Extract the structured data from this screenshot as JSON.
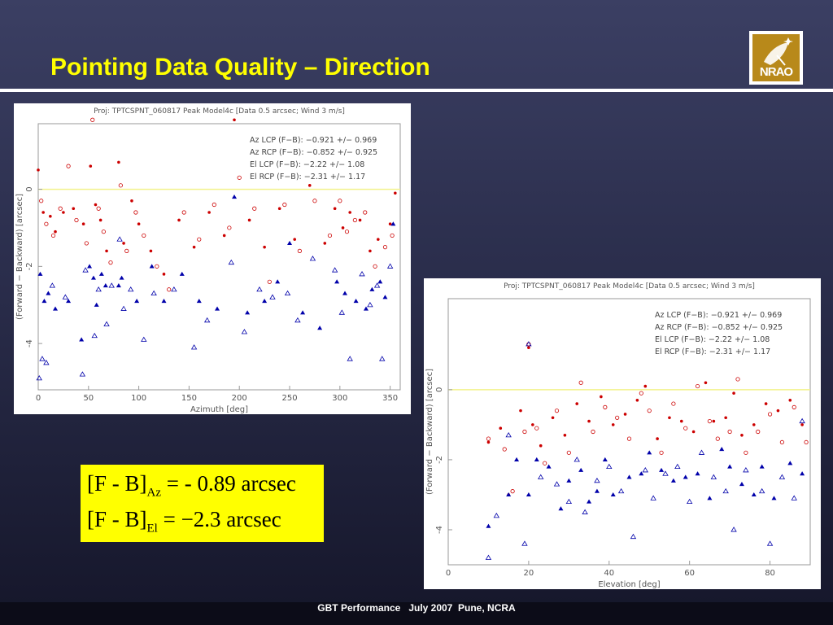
{
  "slide": {
    "title": "Pointing Data Quality – Direction",
    "logo_text": "NRAO",
    "footer": "GBT Performance   July 2007  Pune, NCRA",
    "formula": {
      "az_lhs": "[F - B]",
      "az_sub": "Az",
      "az_rhs": "= - 0.89 arcsec",
      "el_lhs": "[F - B]",
      "el_sub": "El",
      "el_rhs": "= −2.3 arcsec"
    }
  },
  "chart_data": [
    {
      "type": "scatter",
      "title": "Proj: TPTCSPNT_060817   Peak   Model4c  [Data 0.5 arcsec; Wind 3 m/s]",
      "xlabel": "Azimuth [deg]",
      "ylabel": "(Forward − Backward) [arcsec]",
      "xlim": [
        0,
        360
      ],
      "ylim": [
        -5.2,
        1.7
      ],
      "xticks": [
        0,
        50,
        100,
        150,
        200,
        250,
        300,
        350
      ],
      "yticks": [
        0,
        -2,
        -4
      ],
      "reference_line_y": 0,
      "legend_position": "top-right",
      "legend": [
        "Az LCP (F−B): −0.921 +/− 0.969",
        "Az RCP (F−B): −0.852 +/− 0.925",
        "El LCP (F−B): −2.22 +/− 1.08",
        "El RCP (F−B): −2.31 +/− 1.17"
      ],
      "series": [
        {
          "name": "Az LCP",
          "marker": "filled-circle",
          "color": "#cc0000",
          "x": [
            0,
            5,
            12,
            17,
            25,
            35,
            45,
            52,
            57,
            62,
            68,
            80,
            85,
            93,
            100,
            112,
            125,
            140,
            155,
            170,
            185,
            195,
            210,
            225,
            240,
            255,
            270,
            285,
            295,
            303,
            310,
            320,
            330,
            338,
            350,
            355
          ],
          "y": [
            0.5,
            -0.6,
            -0.7,
            -1.1,
            -0.6,
            -0.5,
            -0.9,
            0.6,
            -0.4,
            -0.8,
            -1.6,
            0.7,
            -1.4,
            -0.3,
            -0.9,
            -1.6,
            -2.2,
            -0.8,
            -1.5,
            -0.6,
            -1.2,
            1.8,
            -0.8,
            -1.5,
            -0.5,
            -1.3,
            0.1,
            -1.4,
            -0.5,
            -1.0,
            -0.6,
            -0.8,
            -1.6,
            -1.3,
            -0.9,
            -0.1
          ]
        },
        {
          "name": "Az RCP",
          "marker": "open-circle",
          "color": "#cc0000",
          "x": [
            3,
            8,
            15,
            22,
            30,
            38,
            48,
            54,
            60,
            65,
            72,
            82,
            88,
            97,
            105,
            118,
            130,
            145,
            160,
            175,
            190,
            200,
            215,
            230,
            245,
            260,
            275,
            290,
            300,
            307,
            315,
            325,
            335,
            345,
            352
          ],
          "y": [
            -0.3,
            -0.9,
            -1.2,
            -0.5,
            0.6,
            -0.8,
            -1.4,
            1.8,
            -0.5,
            -1.1,
            -1.9,
            0.1,
            -1.6,
            -0.6,
            -1.2,
            -2.0,
            -2.6,
            -0.6,
            -1.3,
            -0.4,
            -1.0,
            0.3,
            -0.5,
            -2.4,
            -0.4,
            -1.6,
            -0.3,
            -1.2,
            -0.3,
            -1.1,
            -0.8,
            -0.6,
            -2.0,
            -1.5,
            -1.2
          ]
        },
        {
          "name": "El LCP",
          "marker": "filled-triangle",
          "color": "#0000aa",
          "x": [
            2,
            6,
            10,
            17,
            30,
            43,
            51,
            55,
            58,
            63,
            67,
            80,
            83,
            98,
            113,
            125,
            143,
            160,
            178,
            195,
            208,
            225,
            238,
            250,
            263,
            280,
            297,
            305,
            316,
            326,
            332,
            340,
            345,
            353
          ],
          "y": [
            -2.2,
            -2.9,
            -2.7,
            -3.1,
            -2.9,
            -3.9,
            -2.0,
            -2.3,
            -3.0,
            -2.2,
            -2.5,
            -2.5,
            -2.3,
            -2.9,
            -2.0,
            -2.9,
            -2.2,
            -2.9,
            -3.1,
            -0.2,
            -3.2,
            -2.9,
            -2.4,
            -1.4,
            -3.2,
            -3.6,
            -2.4,
            -2.7,
            -2.9,
            -3.1,
            -2.6,
            -2.4,
            -2.8,
            -0.9
          ]
        },
        {
          "name": "El RCP",
          "marker": "open-triangle",
          "color": "#0000aa",
          "x": [
            1,
            4,
            8,
            14,
            27,
            44,
            47,
            56,
            60,
            68,
            73,
            81,
            85,
            92,
            105,
            115,
            135,
            155,
            168,
            192,
            205,
            220,
            233,
            248,
            258,
            273,
            295,
            302,
            310,
            322,
            330,
            337,
            342,
            350
          ],
          "y": [
            -4.9,
            -4.4,
            -4.5,
            -2.5,
            -2.8,
            -4.8,
            -2.1,
            -3.8,
            -2.6,
            -3.5,
            -2.5,
            -1.3,
            -3.1,
            -2.6,
            -3.9,
            -2.7,
            -2.6,
            -4.1,
            -3.4,
            -1.9,
            -3.7,
            -2.6,
            -2.8,
            -2.7,
            -3.4,
            -1.8,
            -2.1,
            -3.2,
            -4.4,
            -2.2,
            -3.0,
            -2.5,
            -4.4,
            -2.0
          ]
        }
      ]
    },
    {
      "type": "scatter",
      "title": "Proj: TPTCSPNT_060817   Peak   Model4c  [Data 0.5 arcsec; Wind 3 m/s]",
      "xlabel": "Elevation [deg]",
      "ylabel": "(Forward − Backward) [arcsec]",
      "xlim": [
        0,
        90
      ],
      "ylim": [
        -5.0,
        2.6
      ],
      "xticks": [
        0,
        20,
        40,
        60,
        80
      ],
      "yticks": [
        0,
        -2,
        -4
      ],
      "reference_line_y": 0,
      "legend_position": "top-right",
      "legend": [
        "Az LCP (F−B): −0.921 +/− 0.969",
        "Az RCP (F−B): −0.852 +/− 0.925",
        "El LCP (F−B): −2.22 +/− 1.08",
        "El RCP (F−B): −2.31 +/− 1.17"
      ],
      "series": [
        {
          "name": "Az LCP",
          "marker": "filled-circle",
          "color": "#cc0000",
          "x": [
            10,
            13,
            15,
            18,
            20,
            21,
            23,
            26,
            29,
            32,
            35,
            38,
            41,
            44,
            47,
            49,
            52,
            55,
            58,
            61,
            64,
            66,
            69,
            71,
            73,
            76,
            79,
            82,
            85,
            88
          ],
          "y": [
            -1.5,
            -1.1,
            -3.0,
            -0.6,
            1.2,
            -1.0,
            -1.6,
            -0.8,
            -1.3,
            -0.4,
            -0.9,
            -0.2,
            -1.0,
            -0.7,
            -0.3,
            0.1,
            -1.4,
            -0.8,
            -0.9,
            -1.2,
            0.2,
            -0.9,
            -0.8,
            -0.1,
            -1.3,
            -1.0,
            -0.4,
            -0.6,
            -0.3,
            -1.0
          ]
        },
        {
          "name": "Az RCP",
          "marker": "open-circle",
          "color": "#cc0000",
          "x": [
            10,
            14,
            16,
            19,
            20,
            22,
            24,
            27,
            30,
            33,
            36,
            39,
            42,
            45,
            48,
            50,
            53,
            56,
            59,
            62,
            65,
            67,
            70,
            72,
            74,
            77,
            80,
            83,
            86,
            89
          ],
          "y": [
            -1.4,
            -1.7,
            -2.9,
            -1.2,
            1.3,
            -1.1,
            -2.1,
            -0.6,
            -1.8,
            0.2,
            -1.2,
            -0.5,
            -0.8,
            -1.4,
            -0.1,
            -0.6,
            -1.8,
            -0.4,
            -1.1,
            0.1,
            -0.9,
            -1.4,
            -1.2,
            0.3,
            -1.8,
            -1.2,
            -0.7,
            -1.5,
            -0.5,
            -1.5
          ]
        },
        {
          "name": "El LCP",
          "marker": "filled-triangle",
          "color": "#0000aa",
          "x": [
            10,
            15,
            17,
            20,
            22,
            25,
            28,
            30,
            33,
            35,
            37,
            39,
            41,
            45,
            48,
            50,
            53,
            56,
            59,
            62,
            65,
            68,
            70,
            73,
            76,
            78,
            81,
            85,
            88
          ],
          "y": [
            -3.9,
            -3.0,
            -2.0,
            -3.0,
            -2.0,
            -2.2,
            -3.4,
            -2.6,
            -2.3,
            -3.2,
            -2.9,
            -2.0,
            -3.0,
            -2.5,
            -2.4,
            -1.8,
            -2.3,
            -2.6,
            -2.5,
            -2.4,
            -3.1,
            -1.7,
            -2.2,
            -2.7,
            -3.0,
            -2.2,
            -3.1,
            -2.1,
            -2.4
          ]
        },
        {
          "name": "El RCP",
          "marker": "open-triangle",
          "color": "#0000aa",
          "x": [
            10,
            12,
            15,
            19,
            20,
            23,
            27,
            30,
            32,
            34,
            37,
            40,
            43,
            46,
            49,
            51,
            54,
            57,
            60,
            63,
            66,
            69,
            71,
            74,
            78,
            80,
            83,
            86,
            88
          ],
          "y": [
            -4.8,
            -3.6,
            -1.3,
            -4.4,
            1.3,
            -2.5,
            -2.7,
            -3.2,
            -2.0,
            -3.5,
            -2.6,
            -2.2,
            -2.9,
            -4.2,
            -2.3,
            -3.1,
            -2.4,
            -2.2,
            -3.2,
            -1.8,
            -2.5,
            -2.9,
            -4.0,
            -2.3,
            -2.9,
            -4.4,
            -2.5,
            -3.1,
            -0.9
          ]
        }
      ]
    }
  ]
}
